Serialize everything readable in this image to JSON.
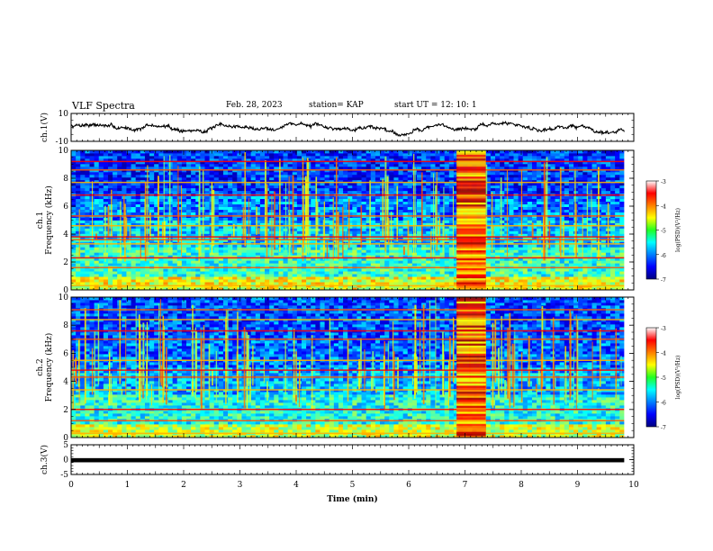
{
  "header": {
    "title": "VLF Spectra",
    "date": "Feb. 28, 2023",
    "station": "station= KAP",
    "start": "start  UT =   12: 10: 1"
  },
  "chart_data": [
    {
      "type": "line",
      "name": "ch1-waveform",
      "ylabel": "ch.1(V)",
      "ylim": [
        -10,
        10
      ],
      "yticks": [
        "10",
        "-10"
      ],
      "xlim": [
        0,
        10
      ],
      "x_unit": "min",
      "data_extent_min": 9.83,
      "baseline": 0,
      "amplitude": 3,
      "dip_at_min": 5.9,
      "grid": false
    },
    {
      "type": "heatmap",
      "name": "ch1-spectrogram",
      "ylabel": "ch.1\nFrequency (kHz)",
      "ylim": [
        0,
        10
      ],
      "yticks": [
        "0",
        "2",
        "4",
        "6",
        "8",
        "10"
      ],
      "xlim": [
        0,
        10
      ],
      "data_extent_min": 9.83,
      "x_unit": "min",
      "z_unit": "log(PSD)(V²/Hz)",
      "zlim": [
        -7,
        -3
      ],
      "colormap": "jet",
      "persistent_lines_khz": [
        0.3,
        1.6,
        2.3,
        3.3,
        3.6,
        3.8,
        4.6,
        5.3,
        6.8,
        7.7,
        8.6,
        9.2
      ],
      "high_band_min": [
        6.85,
        7.37
      ],
      "background_levels": [
        {
          "f_khz": [
            0,
            1
          ],
          "level": -4.6
        },
        {
          "f_khz": [
            1,
            3
          ],
          "level": -5.3
        },
        {
          "f_khz": [
            3,
            5
          ],
          "level": -5.7
        },
        {
          "f_khz": [
            5,
            7
          ],
          "level": -6.0
        },
        {
          "f_khz": [
            7,
            10
          ],
          "level": -6.3
        }
      ],
      "colorbar": {
        "ticks": [
          "-3",
          "-4",
          "-5",
          "-6",
          "-7"
        ],
        "label": "log(PSD)(V²/Hz)"
      }
    },
    {
      "type": "heatmap",
      "name": "ch2-spectrogram",
      "ylabel": "ch.2\nFrequency (kHz)",
      "ylim": [
        0,
        10
      ],
      "yticks": [
        "0",
        "2",
        "4",
        "6",
        "8",
        "10"
      ],
      "xlim": [
        0,
        10
      ],
      "data_extent_min": 9.83,
      "x_unit": "min",
      "z_unit": "log(PSD)(V²/Hz)",
      "zlim": [
        -7,
        -3
      ],
      "colormap": "jet",
      "persistent_lines_khz": [
        0.3,
        1.2,
        2.0,
        3.4,
        4.3,
        4.8,
        5.5,
        7.0,
        7.6,
        8.4,
        9.1
      ],
      "high_band_min": [
        6.85,
        7.37
      ],
      "background_levels": [
        {
          "f_khz": [
            0,
            1
          ],
          "level": -4.7
        },
        {
          "f_khz": [
            1,
            3
          ],
          "level": -5.4
        },
        {
          "f_khz": [
            3,
            5
          ],
          "level": -5.8
        },
        {
          "f_khz": [
            5,
            7
          ],
          "level": -6.1
        },
        {
          "f_khz": [
            7,
            10
          ],
          "level": -6.2
        }
      ],
      "colorbar": {
        "ticks": [
          "-3",
          "-4",
          "-5",
          "-6",
          "-7"
        ],
        "label": "log(PSD)(V²/Hz)"
      }
    },
    {
      "type": "line",
      "name": "ch3-waveform",
      "ylabel": "ch.3(V)",
      "ylim": [
        -5,
        5
      ],
      "yticks": [
        "5",
        "0",
        "-5"
      ],
      "xlim": [
        0,
        10
      ],
      "xlabel": "Time (min)",
      "xticks": [
        "0",
        "1",
        "2",
        "3",
        "4",
        "5",
        "6",
        "7",
        "8",
        "9",
        "10"
      ],
      "data_extent_min": 9.83,
      "band": [
        -0.9,
        0.5
      ],
      "grid": false
    }
  ]
}
